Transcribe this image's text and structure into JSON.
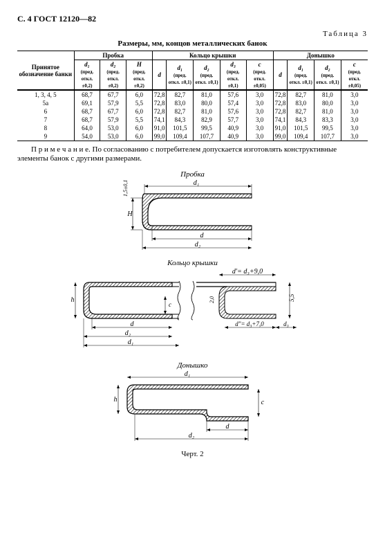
{
  "header": "С. 4 ГОСТ 12120—82",
  "table_label": "Таблица 3",
  "table_title": "Размеры, мм, концов металлических банок",
  "groups": {
    "g1": "Пробка",
    "g2": "Кольцо крышки",
    "g3": "Донышко"
  },
  "rowhead": "Принятое обозначение банки",
  "cols": {
    "d1": "d₁",
    "d1n": "(пред. откл. ±0,2)",
    "d2": "d₂",
    "d2n": "(пред. откл. ±0,2)",
    "H": "H",
    "Hn": "(пред. откл. ±0,2)",
    "d": "d",
    "k1": "d₁",
    "k1n": "(пред. откл. ±0,1)",
    "k2": "d₂",
    "k2n": "(пред. откл. ±0,1)",
    "k3": "d₃",
    "k3n": "(пред. откл. ±0,1)",
    "c": "c",
    "cn": "(пред. откл. ±0,05)",
    "dd": "d",
    "dn1": "d₁",
    "dn1n": "(пред. откл. ±0,1)",
    "dn2": "d₂",
    "dn2n": "(пред. откл. ±0,1)",
    "dc": "c",
    "dcn": "(пред. откл. ±0,05)"
  },
  "rows": [
    {
      "n": "1, 3, 4, 5",
      "p": [
        "68,7",
        "67,7",
        "6,0"
      ],
      "k": [
        "72,8",
        "82,7",
        "81,0",
        "57,6",
        "3,0"
      ],
      "d": [
        "72,8",
        "82,7",
        "81,0",
        "3,0"
      ]
    },
    {
      "n": "5а",
      "p": [
        "69,1",
        "57,9",
        "5,5"
      ],
      "k": [
        "72,8",
        "83,0",
        "80,0",
        "57,4",
        "3,0"
      ],
      "d": [
        "72,8",
        "83,0",
        "80,0",
        "3,0"
      ]
    },
    {
      "n": "6",
      "p": [
        "68,7",
        "67,7",
        "6,0"
      ],
      "k": [
        "72,8",
        "82,7",
        "81,0",
        "57,6",
        "3,0"
      ],
      "d": [
        "72,8",
        "82,7",
        "81,0",
        "3,0"
      ]
    },
    {
      "n": "7",
      "p": [
        "68,7",
        "57,9",
        "5,5"
      ],
      "k": [
        "74,1",
        "84,3",
        "82,9",
        "57,7",
        "3,0"
      ],
      "d": [
        "74,1",
        "84,3",
        "83,3",
        "3,0"
      ]
    },
    {
      "n": "8",
      "p": [
        "64,0",
        "53,0",
        "6,0"
      ],
      "k": [
        "91,0",
        "101,5",
        "99,5",
        "40,9",
        "3,0"
      ],
      "d": [
        "91,0",
        "101,5",
        "99,5",
        "3,0"
      ]
    },
    {
      "n": "9",
      "p": [
        "54,0",
        "53,0",
        "6,0"
      ],
      "k": [
        "99,0",
        "109,4",
        "107,7",
        "40,9",
        "3,0"
      ],
      "d": [
        "99,0",
        "109,4",
        "107,7",
        "3,0"
      ]
    }
  ],
  "note": "П р и м е ч а н и е. По согласованию с потребителем допускается изготовлять конструктивные элементы банок с другими размерами.",
  "fig1": "Пробка",
  "fig2": "Кольцо крышки",
  "fig3": "Донышко",
  "eq1": "d′= d₃+9,0",
  "eq2": "d″= d₃+7,0",
  "caption": "Черт. 2",
  "dims": {
    "d": "d",
    "d1": "d₁",
    "d2": "d₂",
    "d3": "d₃",
    "h": "h",
    "H": "H",
    "c": "c",
    "v15": "1,5±0,1",
    "v2": "2,0",
    "v55": "5,5"
  }
}
